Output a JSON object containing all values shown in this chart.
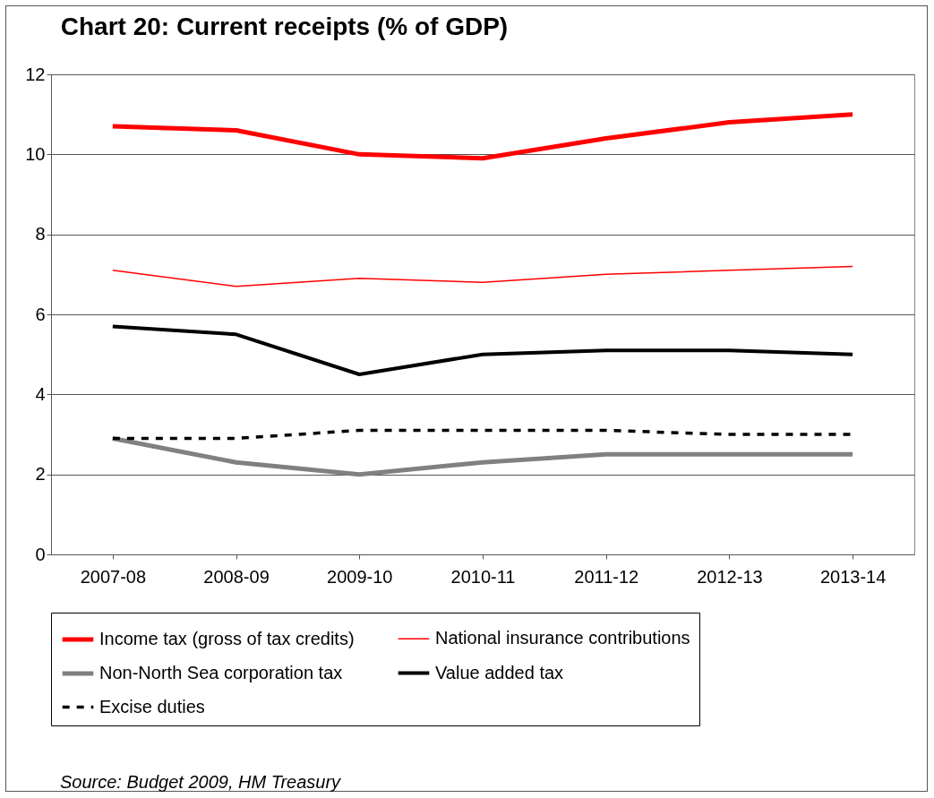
{
  "chart_data": {
    "type": "line",
    "title": "Chart 20: Current receipts (% of GDP)",
    "categories": [
      "2007-08",
      "2008-09",
      "2009-10",
      "2010-11",
      "2011-12",
      "2012-13",
      "2013-14"
    ],
    "series": [
      {
        "name": "Income tax (gross of tax credits)",
        "color": "#ff0000",
        "values": [
          10.7,
          10.6,
          10.0,
          9.9,
          10.4,
          10.8,
          11.0
        ]
      },
      {
        "name": "National insurance contributions",
        "color": "#ff0000",
        "values": [
          7.1,
          6.7,
          6.9,
          6.8,
          7.0,
          7.1,
          7.2
        ]
      },
      {
        "name": "Non-North Sea corporation tax",
        "color": "#808080",
        "values": [
          2.9,
          2.3,
          2.0,
          2.3,
          2.5,
          2.5,
          2.5
        ]
      },
      {
        "name": "Value added tax",
        "color": "#000000",
        "values": [
          5.7,
          5.5,
          4.5,
          5.0,
          5.1,
          5.1,
          5.0
        ]
      },
      {
        "name": "Excise duties",
        "color": "#000000",
        "line_style": "dashed",
        "values": [
          2.9,
          2.9,
          3.1,
          3.1,
          3.1,
          3.0,
          3.0
        ]
      }
    ],
    "ylim": [
      0,
      12
    ],
    "yticks": [
      0,
      2,
      4,
      6,
      8,
      10,
      12
    ],
    "grid": "y",
    "legend": "bottom",
    "marker": "none",
    "annotations": [
      "Source: Budget 2009, HM Treasury"
    ]
  }
}
